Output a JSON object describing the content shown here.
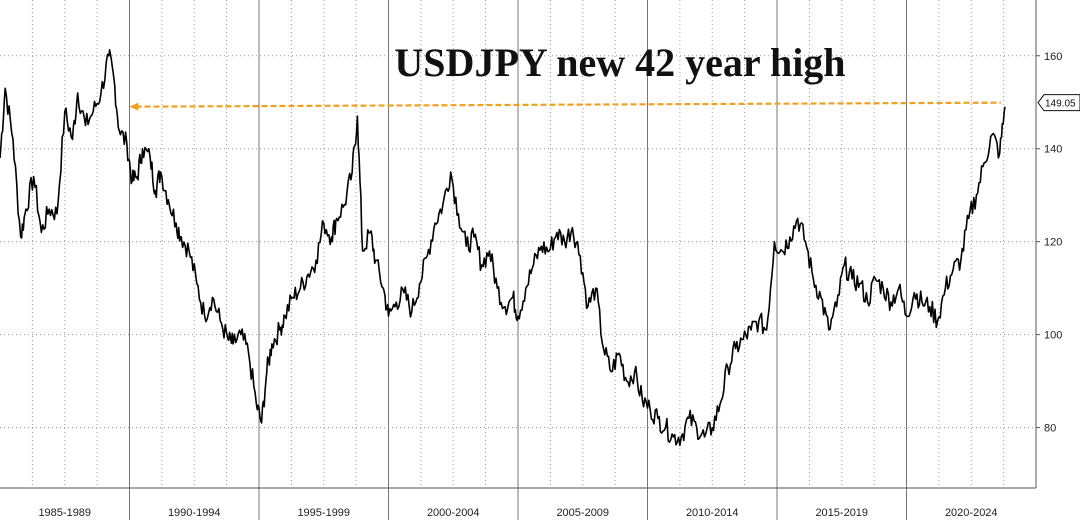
{
  "chart_data": {
    "type": "line",
    "title": "USDJPY new 42 year high",
    "xlabel": "",
    "ylabel": "",
    "x_range": [
      1985.0,
      2023.8
    ],
    "ylim": [
      67,
      172
    ],
    "y_ticks": [
      80,
      100,
      120,
      140,
      160
    ],
    "x_period_labels": [
      {
        "label": "1985-1989",
        "from": 1985,
        "to": 1990
      },
      {
        "label": "1990-1994",
        "from": 1990,
        "to": 1995
      },
      {
        "label": "1995-1999",
        "from": 1995,
        "to": 2000
      },
      {
        "label": "2000-2004",
        "from": 2000,
        "to": 2005
      },
      {
        "label": "2005-2009",
        "from": 2005,
        "to": 2010
      },
      {
        "label": "2010-2014",
        "from": 2010,
        "to": 2015
      },
      {
        "label": "2015-2019",
        "from": 2015,
        "to": 2020
      },
      {
        "label": "2020-2024",
        "from": 2020,
        "to": 2025
      }
    ],
    "grid": true,
    "y_axis_position": "right",
    "series": [
      {
        "color": "#000000",
        "x": [
          1985.0,
          1985.2,
          1985.5,
          1985.8,
          1986.0,
          1986.3,
          1986.6,
          1986.9,
          1987.2,
          1987.5,
          1987.8,
          1988.0,
          1988.3,
          1988.6,
          1988.9,
          1989.2,
          1989.4,
          1989.6,
          1989.9,
          1990.1,
          1990.3,
          1990.5,
          1990.8,
          1991.0,
          1991.2,
          1991.5,
          1991.8,
          1992.0,
          1992.3,
          1992.6,
          1992.9,
          1993.2,
          1993.5,
          1993.8,
          1994.0,
          1994.3,
          1994.6,
          1994.9,
          1995.1,
          1995.3,
          1995.5,
          1995.8,
          1996.0,
          1996.3,
          1996.6,
          1996.9,
          1997.2,
          1997.5,
          1997.8,
          1998.0,
          1998.3,
          1998.6,
          1998.8,
          1999.0,
          1999.3,
          1999.5,
          1999.8,
          2000.0,
          2000.3,
          2000.6,
          2000.9,
          2001.2,
          2001.5,
          2001.8,
          2002.1,
          2002.4,
          2002.7,
          2003.0,
          2003.3,
          2003.6,
          2003.9,
          2004.2,
          2004.5,
          2004.8,
          2005.0,
          2005.3,
          2005.6,
          2005.9,
          2006.2,
          2006.5,
          2006.8,
          2007.1,
          2007.4,
          2007.7,
          2008.0,
          2008.3,
          2008.6,
          2008.9,
          2009.2,
          2009.5,
          2009.8,
          2010.1,
          2010.4,
          2010.7,
          2011.0,
          2011.3,
          2011.6,
          2011.9,
          2012.2,
          2012.5,
          2012.8,
          2013.1,
          2013.4,
          2013.7,
          2014.0,
          2014.3,
          2014.6,
          2014.9,
          2015.2,
          2015.5,
          2015.8,
          2016.1,
          2016.4,
          2016.7,
          2017.0,
          2017.3,
          2017.6,
          2017.9,
          2018.2,
          2018.5,
          2018.8,
          2019.1,
          2019.4,
          2019.7,
          2020.0,
          2020.3,
          2020.6,
          2020.9,
          2021.2,
          2021.5,
          2021.8,
          2022.1,
          2022.4,
          2022.7,
          2023.0,
          2023.3,
          2023.6,
          2023.8
        ],
        "y": [
          138,
          153,
          142,
          121,
          127,
          134,
          122,
          127,
          126,
          148,
          142,
          152,
          145,
          148,
          152,
          160,
          155,
          144,
          141,
          133,
          134,
          140,
          138,
          131,
          135,
          129,
          124,
          121,
          118,
          111,
          104,
          108,
          103,
          99,
          98,
          100,
          96,
          85,
          81,
          92,
          98,
          101,
          104,
          108,
          110,
          113,
          116,
          124,
          121,
          125,
          128,
          135,
          147,
          118,
          122,
          116,
          110,
          104,
          107,
          109,
          105,
          111,
          117,
          124,
          128,
          135,
          126,
          119,
          121,
          115,
          118,
          110,
          106,
          108,
          104,
          110,
          115,
          119,
          118,
          122,
          120,
          123,
          117,
          106,
          110,
          97,
          92,
          96,
          90,
          92,
          86,
          84,
          82,
          80,
          78,
          78,
          82,
          80,
          78,
          80,
          85,
          93,
          97,
          99,
          101,
          103,
          101,
          120,
          118,
          121,
          125,
          120,
          112,
          108,
          101,
          106,
          115,
          112,
          111,
          107,
          112,
          110,
          107,
          110,
          104,
          109,
          107,
          106,
          103,
          110,
          114,
          116,
          125,
          130,
          137,
          143,
          139,
          149.05
        ]
      }
    ],
    "last_value_label": "149.05",
    "reference_line": {
      "value": 149.05,
      "from_x": 1990.0,
      "to_x": 2023.8,
      "color": "#f0a020",
      "style": "dashed"
    }
  }
}
